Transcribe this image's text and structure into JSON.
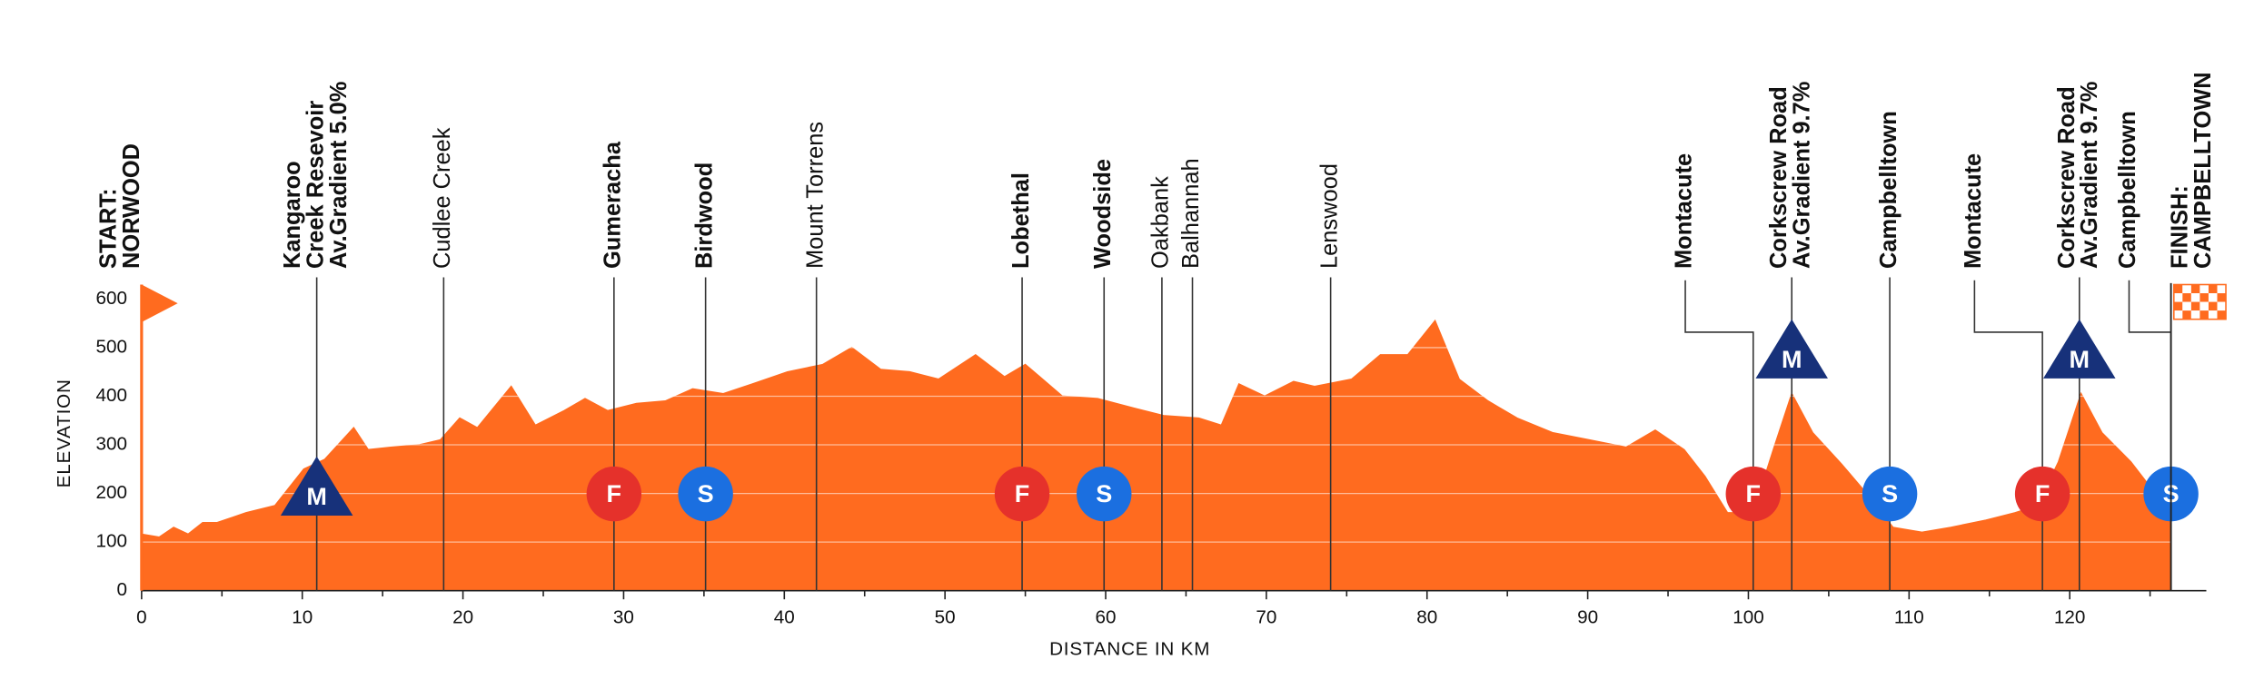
{
  "chart_data": {
    "type": "area",
    "x_label": "DISTANCE IN KM",
    "y_label": "ELEVATION",
    "color": "#ff6b1f",
    "xlim": [
      0,
      128.5
    ],
    "ylim": [
      0,
      600
    ],
    "xticks": [
      0,
      10,
      20,
      30,
      40,
      50,
      60,
      70,
      80,
      90,
      100,
      110,
      120
    ],
    "xminor_ticks": [
      5,
      15,
      25,
      35,
      45,
      55,
      65,
      75,
      85,
      95,
      105,
      115,
      125
    ],
    "yticks": [
      0,
      100,
      200,
      300,
      400,
      500,
      600
    ],
    "grid": true,
    "x": [
      0,
      1.1,
      2,
      2.9,
      3.8,
      4.7,
      6.5,
      8.3,
      10.1,
      11.4,
      13.2,
      14.1,
      15.5,
      17.3,
      18.6,
      19.8,
      20.9,
      23,
      24.5,
      26.3,
      27.6,
      29,
      30.8,
      32.6,
      34.3,
      36.2,
      38,
      40.2,
      42.4,
      44.2,
      46,
      47.8,
      49.6,
      51.9,
      53.7,
      55,
      57.3,
      59.5,
      61.8,
      63.6,
      65.8,
      67.2,
      68.3,
      69.9,
      71.7,
      73,
      75.3,
      77.1,
      78.8,
      80.5,
      82,
      83.8,
      85.6,
      87.8,
      90.1,
      92.4,
      94.2,
      96,
      97.3,
      98.7,
      100.3,
      101.6,
      102.7,
      104,
      105.8,
      107.6,
      109,
      110.8,
      112.6,
      114.8,
      116.6,
      118,
      119.3,
      120.7,
      122,
      123.8,
      125.2,
      126.3
    ],
    "values": [
      116,
      110,
      130,
      116,
      140,
      140,
      160,
      175,
      250,
      270,
      335,
      290,
      295,
      300,
      310,
      355,
      335,
      420,
      340,
      370,
      395,
      370,
      385,
      390,
      415,
      405,
      425,
      450,
      465,
      500,
      455,
      450,
      435,
      485,
      440,
      465,
      400,
      395,
      375,
      360,
      355,
      340,
      425,
      400,
      430,
      420,
      435,
      485,
      485,
      555,
      435,
      390,
      355,
      325,
      310,
      295,
      330,
      290,
      235,
      160,
      160,
      295,
      405,
      325,
      260,
      190,
      130,
      120,
      130,
      145,
      160,
      175,
      265,
      405,
      325,
      265,
      205,
      145
    ],
    "places": [
      {
        "km": 0,
        "label": [
          "START:",
          "NORWOOD"
        ],
        "bold": true,
        "marker": "start"
      },
      {
        "km": 10.9,
        "label": [
          "Kangaroo",
          "Creek Resevoir",
          "Av.Gradient 5.0%"
        ],
        "bold": true,
        "icon": "M"
      },
      {
        "km": 18.8,
        "label": [
          "Cudlee Creek"
        ],
        "bold": false
      },
      {
        "km": 29.4,
        "label": [
          "Gumeracha"
        ],
        "bold": true,
        "icon": "F"
      },
      {
        "km": 35.1,
        "label": [
          "Birdwood"
        ],
        "bold": true,
        "icon": "S"
      },
      {
        "km": 42.0,
        "label": [
          "Mount Torrens"
        ],
        "bold": false
      },
      {
        "km": 54.8,
        "label": [
          "Lobethal"
        ],
        "bold": true,
        "icon": "F"
      },
      {
        "km": 59.9,
        "label": [
          "Woodside"
        ],
        "bold": true,
        "icon": "S"
      },
      {
        "km": 63.5,
        "label": [
          "Oakbank"
        ],
        "bold": false
      },
      {
        "km": 65.4,
        "label": [
          "Balhannah"
        ],
        "bold": false
      },
      {
        "km": 74.0,
        "label": [
          "Lenswood"
        ],
        "bold": false
      },
      {
        "km": 100.3,
        "label": [
          "Montacute"
        ],
        "bold": true,
        "icon": "F"
      },
      {
        "km": 102.7,
        "label": [
          "Corkscrew Road",
          "Av.Gradient 9.7%"
        ],
        "bold": true,
        "icon": "M"
      },
      {
        "km": 108.8,
        "label": [
          "Campbelltown"
        ],
        "bold": true,
        "icon": "S"
      },
      {
        "km": 118.3,
        "label": [
          "Montacute"
        ],
        "bold": true,
        "icon": "F"
      },
      {
        "km": 120.6,
        "label": [
          "Corkscrew Road",
          "Av.Gradient 9.7%"
        ],
        "bold": true,
        "icon": "M"
      },
      {
        "km": 126.3,
        "label": [
          "Campbelltown"
        ],
        "bold": true,
        "icon": "S"
      },
      {
        "km": 126.3,
        "label": [
          "FINISH:",
          "CAMPBELLTOWN"
        ],
        "bold": true,
        "marker": "finish"
      }
    ]
  }
}
